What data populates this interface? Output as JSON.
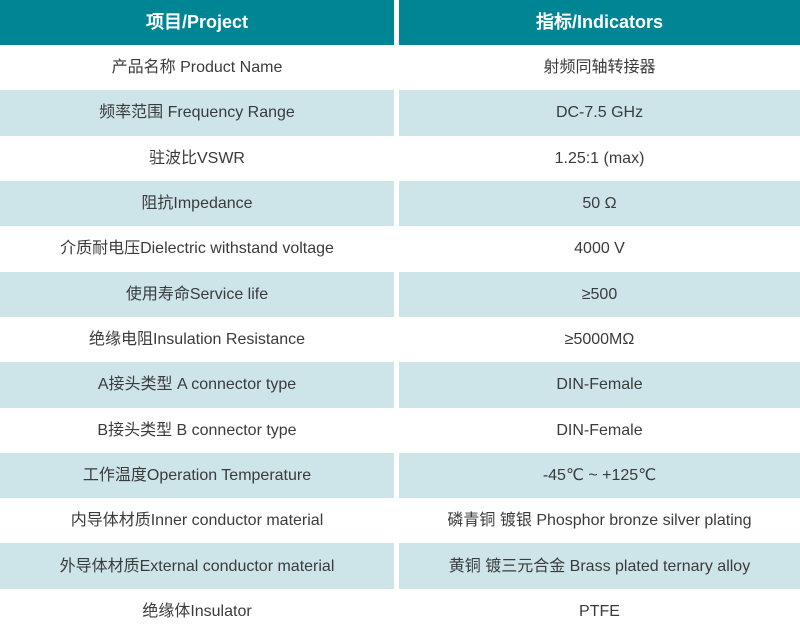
{
  "table": {
    "colors": {
      "header_background": "#008594",
      "header_text": "#ffffff",
      "row_background": "#ffffff",
      "row_alt_background": "#cde5e9",
      "body_text": "#3b3b3b",
      "column_divider": "#ffffff"
    },
    "columns": [
      {
        "label": "项目/Project"
      },
      {
        "label": "指标/Indicators"
      }
    ],
    "rows": [
      {
        "project": "产品名称 Product Name",
        "indicator": "射频同轴转接器"
      },
      {
        "project": "频率范围 Frequency Range",
        "indicator": "DC-7.5 GHz"
      },
      {
        "project": "驻波比VSWR",
        "indicator": "1.25:1 (max)"
      },
      {
        "project": "阻抗Impedance",
        "indicator": "50 Ω"
      },
      {
        "project": "介质耐电压Dielectric withstand voltage",
        "indicator": "4000 V"
      },
      {
        "project": "使用寿命Service life",
        "indicator": "≥500"
      },
      {
        "project": "绝缘电阻Insulation Resistance",
        "indicator": "≥5000MΩ"
      },
      {
        "project": "A接头类型 A connector type",
        "indicator": "DIN-Female"
      },
      {
        "project": "B接头类型 B connector type",
        "indicator": "DIN-Female"
      },
      {
        "project": "工作温度Operation Temperature",
        "indicator": "-45℃ ~ +125℃"
      },
      {
        "project": "内导体材质Inner conductor material",
        "indicator": "磷青铜 镀银 Phosphor bronze silver plating"
      },
      {
        "project": "外导体材质External conductor material",
        "indicator": "黄铜 镀三元合金 Brass plated ternary alloy"
      },
      {
        "project": "绝缘体Insulator",
        "indicator": "PTFE"
      }
    ]
  }
}
